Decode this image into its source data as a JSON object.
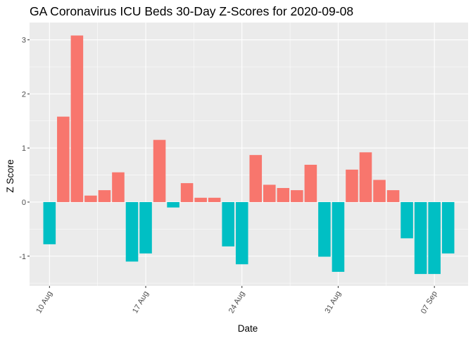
{
  "chart_data": {
    "type": "bar",
    "title": "GA Coronavirus ICU Beds 30-Day Z-Scores for 2020-09-08",
    "xlabel": "Date",
    "ylabel": "Z Score",
    "x": [
      "2020-08-10",
      "2020-08-11",
      "2020-08-12",
      "2020-08-13",
      "2020-08-14",
      "2020-08-15",
      "2020-08-16",
      "2020-08-17",
      "2020-08-18",
      "2020-08-19",
      "2020-08-20",
      "2020-08-21",
      "2020-08-22",
      "2020-08-23",
      "2020-08-24",
      "2020-08-25",
      "2020-08-26",
      "2020-08-27",
      "2020-08-28",
      "2020-08-29",
      "2020-08-30",
      "2020-08-31",
      "2020-09-01",
      "2020-09-02",
      "2020-09-03",
      "2020-09-04",
      "2020-09-05",
      "2020-09-06",
      "2020-09-07",
      "2020-09-08"
    ],
    "values": [
      -0.78,
      1.58,
      3.08,
      0.12,
      0.22,
      0.55,
      -1.1,
      -0.95,
      1.15,
      -0.1,
      0.35,
      0.08,
      0.08,
      -0.82,
      -1.15,
      0.87,
      0.32,
      0.26,
      0.22,
      0.69,
      -1.01,
      -1.29,
      0.6,
      0.92,
      0.41,
      0.22,
      -0.67,
      -1.33,
      -1.33,
      -0.95
    ],
    "ylim": [
      -1.55,
      3.32
    ],
    "yticks": [
      "-1",
      "0",
      "1",
      "2",
      "3"
    ],
    "xticks": [
      "10 Aug",
      "17 Aug",
      "24 Aug",
      "31 Aug",
      "07 Sep"
    ],
    "xtick_dates": [
      "2020-08-10",
      "2020-08-17",
      "2020-08-24",
      "2020-08-31",
      "2020-09-07"
    ],
    "grid": true,
    "legend": "none",
    "colors": {
      "positive": "#F8766D",
      "negative": "#00BFC4",
      "panel": "#EBEBEB",
      "grid": "#FFFFFF"
    }
  }
}
